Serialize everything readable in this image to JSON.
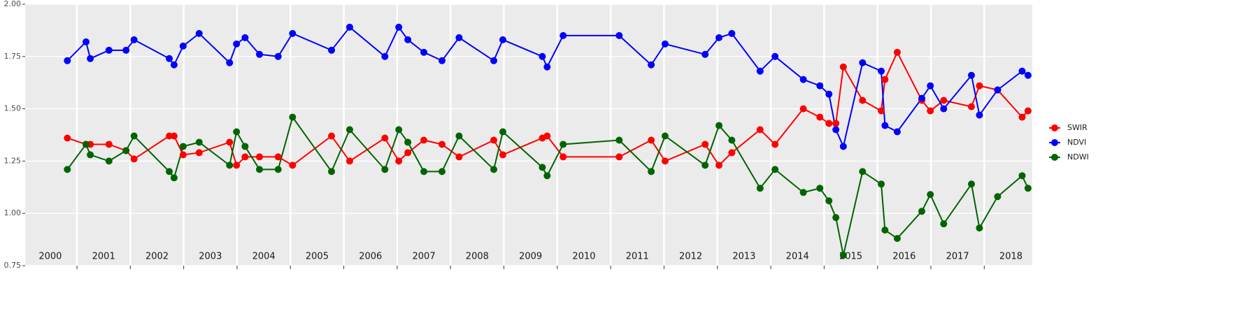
{
  "chart_data": {
    "type": "line",
    "x": [
      2000.82,
      2001.17,
      2001.25,
      2001.6,
      2001.92,
      2002.07,
      2002.73,
      2002.82,
      2002.99,
      2003.29,
      2003.86,
      2003.99,
      2004.15,
      2004.42,
      2004.77,
      2005.04,
      2005.77,
      2006.11,
      2006.77,
      2007.03,
      2007.2,
      2007.5,
      2007.84,
      2008.16,
      2008.81,
      2008.98,
      2009.72,
      2009.81,
      2010.11,
      2011.16,
      2011.76,
      2012.02,
      2012.77,
      2013.03,
      2013.27,
      2013.8,
      2014.08,
      2014.61,
      2014.92,
      2015.09,
      2015.22,
      2015.36,
      2015.72,
      2016.07,
      2016.14,
      2016.37,
      2016.83,
      2016.99,
      2017.24,
      2017.76,
      2017.91,
      2018.25,
      2018.71,
      2018.82
    ],
    "series": [
      {
        "name": "SWIR",
        "color": "#ff0000",
        "values": [
          1.36,
          1.33,
          1.33,
          1.33,
          1.3,
          1.26,
          1.37,
          1.37,
          1.28,
          1.29,
          1.34,
          1.23,
          1.27,
          1.27,
          1.27,
          1.23,
          1.37,
          1.25,
          1.36,
          1.25,
          1.29,
          1.35,
          1.33,
          1.27,
          1.35,
          1.28,
          1.36,
          1.37,
          1.27,
          1.27,
          1.35,
          1.25,
          1.33,
          1.23,
          1.29,
          1.4,
          1.33,
          1.5,
          1.46,
          1.43,
          1.43,
          1.7,
          1.54,
          1.49,
          1.64,
          1.77,
          1.54,
          1.49,
          1.54,
          1.51,
          1.61,
          1.59,
          1.46,
          1.49
        ]
      },
      {
        "name": "NDVI",
        "color": "#0000ff",
        "values": [
          1.73,
          1.82,
          1.74,
          1.78,
          1.78,
          1.83,
          1.74,
          1.71,
          1.8,
          1.86,
          1.72,
          1.81,
          1.84,
          1.76,
          1.75,
          1.86,
          1.78,
          1.89,
          1.75,
          1.89,
          1.83,
          1.77,
          1.73,
          1.84,
          1.73,
          1.83,
          1.75,
          1.7,
          1.85,
          1.85,
          1.71,
          1.81,
          1.76,
          1.84,
          1.86,
          1.68,
          1.75,
          1.64,
          1.61,
          1.57,
          1.4,
          1.32,
          1.72,
          1.68,
          1.42,
          1.39,
          1.55,
          1.61,
          1.5,
          1.66,
          1.47,
          1.59,
          1.68,
          1.66
        ]
      },
      {
        "name": "NDWI",
        "color": "#006400",
        "values": [
          1.21,
          1.33,
          1.28,
          1.25,
          1.3,
          1.37,
          1.2,
          1.17,
          1.32,
          1.34,
          1.23,
          1.39,
          1.32,
          1.21,
          1.21,
          1.46,
          1.2,
          1.4,
          1.21,
          1.4,
          1.34,
          1.2,
          1.2,
          1.37,
          1.21,
          1.39,
          1.22,
          1.18,
          1.33,
          1.35,
          1.2,
          1.37,
          1.23,
          1.42,
          1.35,
          1.12,
          1.21,
          1.1,
          1.12,
          1.06,
          0.98,
          0.8,
          1.2,
          1.14,
          0.92,
          0.88,
          1.01,
          1.09,
          0.95,
          1.14,
          0.93,
          1.08,
          1.18,
          1.12
        ]
      }
    ],
    "xlim": [
      2000.03,
      2018.9
    ],
    "xticks": [
      {
        "value": 2000.5,
        "label": "2000"
      },
      {
        "value": 2001.5,
        "label": "2001"
      },
      {
        "value": 2002.5,
        "label": "2002"
      },
      {
        "value": 2003.5,
        "label": "2003"
      },
      {
        "value": 2004.5,
        "label": "2004"
      },
      {
        "value": 2005.5,
        "label": "2005"
      },
      {
        "value": 2006.5,
        "label": "2006"
      },
      {
        "value": 2007.5,
        "label": "2007"
      },
      {
        "value": 2008.5,
        "label": "2008"
      },
      {
        "value": 2009.5,
        "label": "2009"
      },
      {
        "value": 2010.5,
        "label": "2010"
      },
      {
        "value": 2011.5,
        "label": "2011"
      },
      {
        "value": 2012.5,
        "label": "2012"
      },
      {
        "value": 2013.5,
        "label": "2013"
      },
      {
        "value": 2014.5,
        "label": "2014"
      },
      {
        "value": 2015.5,
        "label": "2015"
      },
      {
        "value": 2016.5,
        "label": "2016"
      },
      {
        "value": 2017.5,
        "label": "2017"
      },
      {
        "value": 2018.5,
        "label": "2018"
      }
    ],
    "year_boundaries": [
      2001,
      2002,
      2003,
      2004,
      2005,
      2006,
      2007,
      2008,
      2009,
      2010,
      2011,
      2012,
      2013,
      2014,
      2015,
      2016,
      2017,
      2018
    ],
    "ylim": [
      0.75,
      2.0
    ],
    "yticks": [
      {
        "value": 0.75,
        "label": "0.75"
      },
      {
        "value": 1.0,
        "label": "1.00"
      },
      {
        "value": 1.25,
        "label": "1.25"
      },
      {
        "value": 1.5,
        "label": "1.50"
      },
      {
        "value": 1.75,
        "label": "1.75"
      },
      {
        "value": 2.0,
        "label": "2.00"
      }
    ],
    "grid": true,
    "legend": "right"
  }
}
